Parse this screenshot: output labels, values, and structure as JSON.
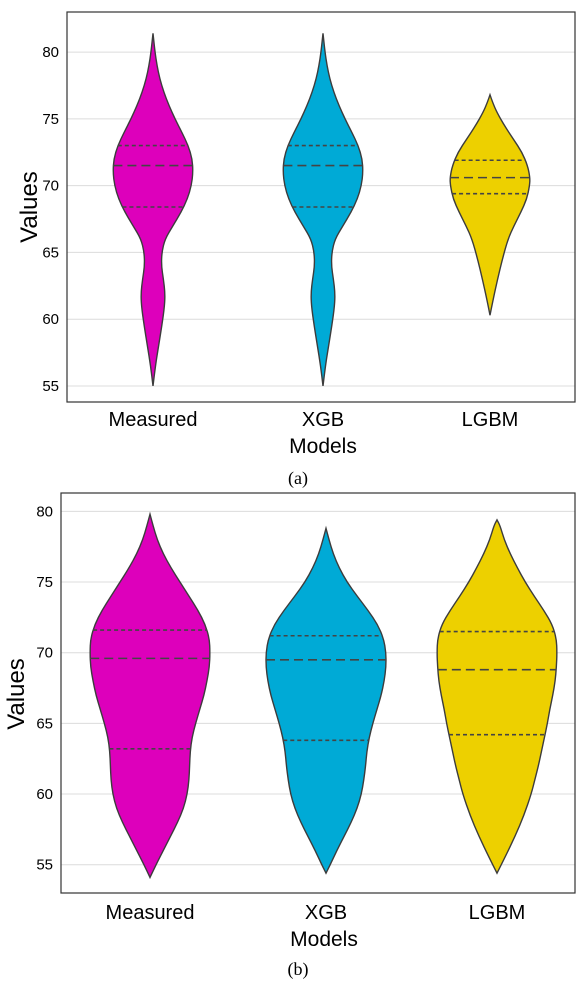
{
  "chart_data": [
    {
      "type": "violin",
      "panel_label": "(a)",
      "xlabel": "Models",
      "ylabel": "Values",
      "ylim": [
        53.8,
        83.0
      ],
      "yticks": [
        55,
        60,
        65,
        70,
        75,
        80
      ],
      "grid": "horizontal",
      "categories": [
        "Measured",
        "XGB",
        "LGBM"
      ],
      "colors": [
        "#DD00BB",
        "#00AAD6",
        "#EDD000"
      ],
      "violins": [
        {
          "category": "Measured",
          "min": 55.0,
          "max": 81.4,
          "quartiles": [
            68.4,
            71.5,
            73.0
          ],
          "density": [
            [
              55.0,
              0.0
            ],
            [
              56.5,
              0.06
            ],
            [
              58.0,
              0.14
            ],
            [
              59.5,
              0.22
            ],
            [
              61.0,
              0.29
            ],
            [
              62.0,
              0.3
            ],
            [
              63.0,
              0.26
            ],
            [
              64.0,
              0.21
            ],
            [
              65.0,
              0.22
            ],
            [
              66.0,
              0.3
            ],
            [
              67.0,
              0.5
            ],
            [
              68.0,
              0.7
            ],
            [
              69.0,
              0.86
            ],
            [
              70.0,
              0.96
            ],
            [
              71.0,
              1.0
            ],
            [
              72.0,
              0.98
            ],
            [
              73.0,
              0.88
            ],
            [
              74.0,
              0.72
            ],
            [
              75.0,
              0.55
            ],
            [
              76.0,
              0.4
            ],
            [
              77.0,
              0.27
            ],
            [
              78.0,
              0.17
            ],
            [
              79.0,
              0.1
            ],
            [
              80.0,
              0.05
            ],
            [
              81.4,
              0.0
            ]
          ]
        },
        {
          "category": "XGB",
          "min": 55.0,
          "max": 81.4,
          "quartiles": [
            68.4,
            71.5,
            73.0
          ],
          "density": [
            [
              55.0,
              0.0
            ],
            [
              56.5,
              0.06
            ],
            [
              58.0,
              0.14
            ],
            [
              59.5,
              0.22
            ],
            [
              61.0,
              0.29
            ],
            [
              62.0,
              0.3
            ],
            [
              63.0,
              0.26
            ],
            [
              64.0,
              0.21
            ],
            [
              65.0,
              0.22
            ],
            [
              66.0,
              0.3
            ],
            [
              67.0,
              0.5
            ],
            [
              68.0,
              0.7
            ],
            [
              69.0,
              0.86
            ],
            [
              70.0,
              0.96
            ],
            [
              71.0,
              1.0
            ],
            [
              72.0,
              0.98
            ],
            [
              73.0,
              0.88
            ],
            [
              74.0,
              0.72
            ],
            [
              75.0,
              0.55
            ],
            [
              76.0,
              0.4
            ],
            [
              77.0,
              0.27
            ],
            [
              78.0,
              0.17
            ],
            [
              79.0,
              0.1
            ],
            [
              80.0,
              0.05
            ],
            [
              81.4,
              0.0
            ]
          ]
        },
        {
          "category": "LGBM",
          "min": 60.3,
          "max": 76.8,
          "quartiles": [
            69.4,
            70.6,
            71.9
          ],
          "density": [
            [
              60.3,
              0.0
            ],
            [
              61.5,
              0.08
            ],
            [
              63.0,
              0.19
            ],
            [
              64.5,
              0.31
            ],
            [
              66.0,
              0.45
            ],
            [
              67.0,
              0.6
            ],
            [
              68.0,
              0.77
            ],
            [
              69.0,
              0.92
            ],
            [
              70.0,
              0.99
            ],
            [
              70.6,
              1.0
            ],
            [
              71.5,
              0.94
            ],
            [
              72.5,
              0.8
            ],
            [
              73.5,
              0.58
            ],
            [
              74.5,
              0.36
            ],
            [
              75.5,
              0.17
            ],
            [
              76.2,
              0.07
            ],
            [
              76.8,
              0.0
            ]
          ]
        }
      ]
    },
    {
      "type": "violin",
      "panel_label": "(b)",
      "xlabel": "Models",
      "ylabel": "Values",
      "ylim": [
        53.0,
        81.3
      ],
      "yticks": [
        55,
        60,
        65,
        70,
        75,
        80
      ],
      "grid": "horizontal",
      "categories": [
        "Measured",
        "XGB",
        "LGBM"
      ],
      "colors": [
        "#DD00BB",
        "#00AAD6",
        "#EDD000"
      ],
      "violins": [
        {
          "category": "Measured",
          "min": 54.1,
          "max": 79.8,
          "quartiles": [
            63.2,
            69.6,
            71.6
          ],
          "density": [
            [
              54.1,
              0.0
            ],
            [
              55.0,
              0.1
            ],
            [
              56.0,
              0.22
            ],
            [
              57.0,
              0.34
            ],
            [
              58.0,
              0.46
            ],
            [
              59.0,
              0.56
            ],
            [
              60.0,
              0.62
            ],
            [
              61.0,
              0.65
            ],
            [
              62.0,
              0.66
            ],
            [
              63.0,
              0.67
            ],
            [
              64.0,
              0.7
            ],
            [
              65.0,
              0.76
            ],
            [
              66.0,
              0.83
            ],
            [
              67.0,
              0.9
            ],
            [
              68.0,
              0.95
            ],
            [
              69.0,
              0.99
            ],
            [
              70.0,
              1.0
            ],
            [
              71.0,
              0.99
            ],
            [
              72.0,
              0.92
            ],
            [
              73.0,
              0.8
            ],
            [
              74.0,
              0.65
            ],
            [
              75.0,
              0.5
            ],
            [
              76.0,
              0.35
            ],
            [
              77.0,
              0.22
            ],
            [
              78.0,
              0.12
            ],
            [
              79.0,
              0.05
            ],
            [
              79.8,
              0.0
            ]
          ]
        },
        {
          "category": "XGB",
          "min": 54.4,
          "max": 78.8,
          "quartiles": [
            63.8,
            69.5,
            71.2
          ],
          "density": [
            [
              54.4,
              0.0
            ],
            [
              55.0,
              0.07
            ],
            [
              56.0,
              0.18
            ],
            [
              57.0,
              0.3
            ],
            [
              58.0,
              0.42
            ],
            [
              59.0,
              0.52
            ],
            [
              60.0,
              0.59
            ],
            [
              61.0,
              0.63
            ],
            [
              62.0,
              0.66
            ],
            [
              63.0,
              0.68
            ],
            [
              64.0,
              0.72
            ],
            [
              65.0,
              0.78
            ],
            [
              66.0,
              0.85
            ],
            [
              67.0,
              0.92
            ],
            [
              68.0,
              0.97
            ],
            [
              69.0,
              1.0
            ],
            [
              70.0,
              1.0
            ],
            [
              71.0,
              0.96
            ],
            [
              72.0,
              0.86
            ],
            [
              73.0,
              0.7
            ],
            [
              74.0,
              0.52
            ],
            [
              75.0,
              0.35
            ],
            [
              76.0,
              0.22
            ],
            [
              77.0,
              0.12
            ],
            [
              78.0,
              0.05
            ],
            [
              78.8,
              0.0
            ]
          ]
        },
        {
          "category": "LGBM",
          "min": 54.4,
          "max": 79.4,
          "quartiles": [
            64.2,
            68.8,
            71.5
          ],
          "density": [
            [
              54.4,
              0.0
            ],
            [
              55.5,
              0.13
            ],
            [
              57.0,
              0.3
            ],
            [
              58.5,
              0.45
            ],
            [
              60.0,
              0.57
            ],
            [
              61.0,
              0.63
            ],
            [
              62.0,
              0.69
            ],
            [
              63.0,
              0.74
            ],
            [
              64.0,
              0.79
            ],
            [
              65.0,
              0.84
            ],
            [
              66.0,
              0.88
            ],
            [
              67.0,
              0.93
            ],
            [
              68.0,
              0.97
            ],
            [
              69.0,
              0.99
            ],
            [
              70.0,
              1.0
            ],
            [
              71.0,
              0.99
            ],
            [
              72.0,
              0.92
            ],
            [
              73.0,
              0.78
            ],
            [
              74.0,
              0.62
            ],
            [
              75.0,
              0.47
            ],
            [
              76.0,
              0.34
            ],
            [
              77.0,
              0.22
            ],
            [
              78.0,
              0.12
            ],
            [
              79.0,
              0.05
            ],
            [
              79.4,
              0.0
            ]
          ]
        }
      ]
    }
  ]
}
